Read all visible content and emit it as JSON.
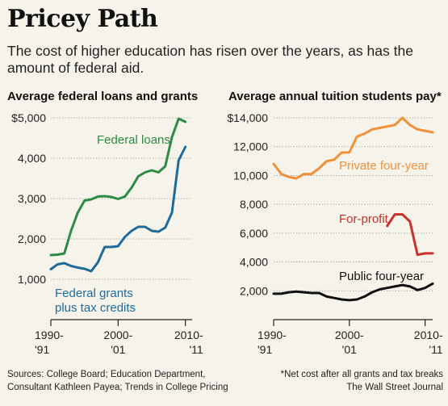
{
  "title": "Pricey Path",
  "subtitle": "The cost of higher education has risen over the years, as has the amount of federal aid.",
  "left_panel_title": "Average federal loans and grants",
  "right_panel_title": "Average annual tuition students pay*",
  "sources": "Sources: College Board; Education Department, Consultant Kathleen Payea; Trends in College Pricing",
  "footnote": "*Net cost after all grants and tax breaks",
  "publisher": "The Wall Street Journal",
  "colors": {
    "green": "#2e8b45",
    "blue": "#1f6b9c",
    "orange": "#f0913a",
    "red": "#c9302c",
    "black": "#111111"
  },
  "chart_data": [
    {
      "type": "line",
      "title": "Average federal loans and grants",
      "x_ticks": [
        1990,
        2000,
        2010
      ],
      "x_tick_labels": [
        [
          "1990-",
          "'91"
        ],
        [
          "2000-",
          "'01"
        ],
        [
          "2010-",
          "'11"
        ]
      ],
      "xlim": [
        1990,
        2011
      ],
      "ylim": [
        0,
        5000
      ],
      "y_ticks": [
        1000,
        2000,
        3000,
        4000,
        5000
      ],
      "y_tick_labels": [
        "1,000",
        "2,000",
        "3,000",
        "4,000",
        "$5,000"
      ],
      "grid": true,
      "series": [
        {
          "name": "Federal loans",
          "color": "#2e8b45",
          "label_lines": [
            "Federal loans"
          ],
          "x": [
            1990,
            1991,
            1992,
            1993,
            1994,
            1995,
            1996,
            1997,
            1998,
            1999,
            2000,
            2001,
            2002,
            2003,
            2004,
            2005,
            2006,
            2007,
            2008,
            2009,
            2010
          ],
          "y": [
            1600,
            1610,
            1640,
            2200,
            2650,
            2950,
            2980,
            3050,
            3060,
            3040,
            2990,
            3050,
            3270,
            3550,
            3650,
            3700,
            3650,
            3800,
            4520,
            4980,
            4900
          ]
        },
        {
          "name": "Federal grants plus tax credits",
          "color": "#1f6b9c",
          "label_lines": [
            "Federal grants",
            "plus tax credits"
          ],
          "x": [
            1990,
            1991,
            1992,
            1993,
            1994,
            1995,
            1996,
            1997,
            1998,
            1999,
            2000,
            2001,
            2002,
            2003,
            2004,
            2005,
            2006,
            2007,
            2008,
            2009,
            2010
          ],
          "y": [
            1250,
            1370,
            1400,
            1330,
            1290,
            1260,
            1200,
            1420,
            1800,
            1800,
            1820,
            2050,
            2200,
            2300,
            2300,
            2200,
            2180,
            2280,
            2650,
            3950,
            4280
          ]
        }
      ]
    },
    {
      "type": "line",
      "title": "Average annual tuition students pay*",
      "x_ticks": [
        1990,
        2000,
        2010
      ],
      "x_tick_labels": [
        [
          "1990-",
          "'91"
        ],
        [
          "2000-",
          "'01"
        ],
        [
          "2010-",
          "'11"
        ]
      ],
      "xlim": [
        1990,
        2011
      ],
      "ylim": [
        0,
        14000
      ],
      "y_ticks": [
        2000,
        4000,
        6000,
        8000,
        10000,
        12000,
        14000
      ],
      "y_tick_labels": [
        "2,000",
        "4,000",
        "6,000",
        "8,000",
        "10,000",
        "12,000",
        "$14,000"
      ],
      "grid": true,
      "series": [
        {
          "name": "Private four-year",
          "color": "#f0913a",
          "label_lines": [
            "Private four-year"
          ],
          "x": [
            1990,
            1991,
            1992,
            1993,
            1994,
            1995,
            1996,
            1997,
            1998,
            1999,
            2000,
            2001,
            2002,
            2003,
            2004,
            2005,
            2006,
            2007,
            2008,
            2009,
            2010,
            2011
          ],
          "y": [
            10800,
            10100,
            9900,
            9800,
            10100,
            10100,
            10500,
            11000,
            11100,
            11600,
            11600,
            12700,
            12900,
            13200,
            13300,
            13400,
            13500,
            14000,
            13500,
            13200,
            13100,
            13000
          ]
        },
        {
          "name": "For-profit",
          "color": "#c9302c",
          "label_lines": [
            "For-profit"
          ],
          "x": [
            2005,
            2006,
            2007,
            2008,
            2009,
            2010,
            2011
          ],
          "y": [
            6500,
            7300,
            7300,
            6800,
            4500,
            4600,
            4600
          ]
        },
        {
          "name": "Public four-year",
          "color": "#111111",
          "label_lines": [
            "Public four-year"
          ],
          "x": [
            1990,
            1991,
            1992,
            1993,
            1994,
            1995,
            1996,
            1997,
            1998,
            1999,
            2000,
            2001,
            2002,
            2003,
            2004,
            2005,
            2006,
            2007,
            2008,
            2009,
            2010,
            2011
          ],
          "y": [
            1800,
            1800,
            1900,
            1950,
            1900,
            1850,
            1850,
            1600,
            1500,
            1400,
            1350,
            1400,
            1600,
            1900,
            2100,
            2200,
            2300,
            2400,
            2300,
            2050,
            2200,
            2500
          ]
        }
      ]
    }
  ]
}
